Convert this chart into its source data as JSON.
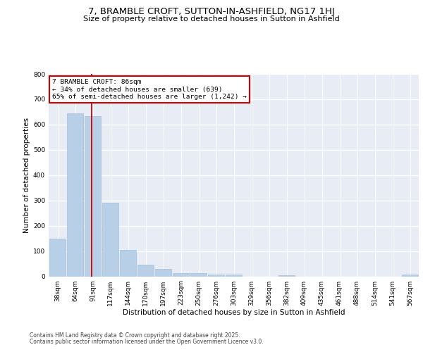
{
  "title": "7, BRAMBLE CROFT, SUTTON-IN-ASHFIELD, NG17 1HJ",
  "subtitle": "Size of property relative to detached houses in Sutton in Ashfield",
  "xlabel": "Distribution of detached houses by size in Sutton in Ashfield",
  "ylabel": "Number of detached properties",
  "categories": [
    "38sqm",
    "64sqm",
    "91sqm",
    "117sqm",
    "144sqm",
    "170sqm",
    "197sqm",
    "223sqm",
    "250sqm",
    "276sqm",
    "303sqm",
    "329sqm",
    "356sqm",
    "382sqm",
    "409sqm",
    "435sqm",
    "461sqm",
    "488sqm",
    "514sqm",
    "541sqm",
    "567sqm"
  ],
  "values": [
    150,
    645,
    633,
    291,
    103,
    47,
    30,
    13,
    12,
    8,
    8,
    0,
    0,
    4,
    0,
    0,
    0,
    0,
    0,
    0,
    7
  ],
  "bar_color": "#b8cfe8",
  "bar_edge_color": "#9ab8d8",
  "background_color": "#e8edf5",
  "grid_color": "#ffffff",
  "red_line_x": 1.93,
  "annotation_text": "7 BRAMBLE CROFT: 86sqm\n← 34% of detached houses are smaller (639)\n65% of semi-detached houses are larger (1,242) →",
  "annotation_box_facecolor": "#ffffff",
  "annotation_box_edgecolor": "#cc0000",
  "footer_line1": "Contains HM Land Registry data © Crown copyright and database right 2025.",
  "footer_line2": "Contains public sector information licensed under the Open Government Licence v3.0.",
  "ylim_max": 800,
  "yticks": [
    0,
    100,
    200,
    300,
    400,
    500,
    600,
    700,
    800
  ],
  "title_fontsize": 9.5,
  "subtitle_fontsize": 8.0,
  "ylabel_fontsize": 7.5,
  "xlabel_fontsize": 7.5,
  "tick_fontsize": 6.5,
  "footer_fontsize": 5.5
}
